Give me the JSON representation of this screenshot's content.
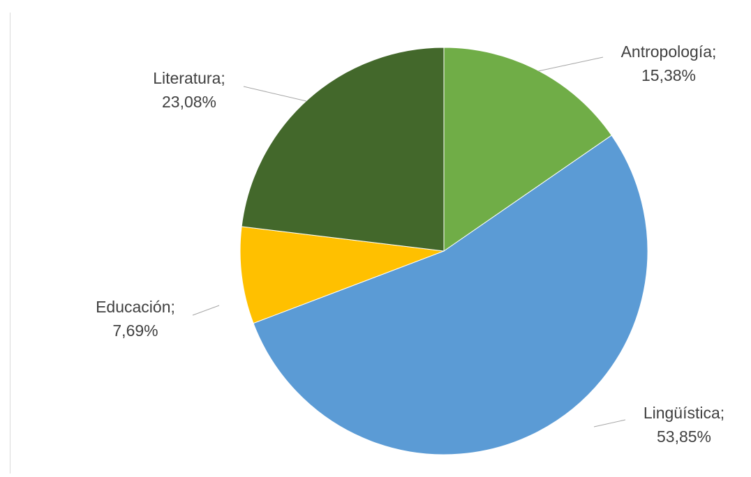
{
  "chart_data": {
    "type": "pie",
    "title": "",
    "slices": [
      {
        "label": "Antropología;",
        "value_label": "15,38%",
        "value": 15.38,
        "color": "#70ad47"
      },
      {
        "label": "Lingüística;",
        "value_label": "53,85%",
        "value": 53.85,
        "color": "#5b9bd5"
      },
      {
        "label": "Educación;",
        "value_label": "7,69%",
        "value": 7.69,
        "color": "#ffc000"
      },
      {
        "label": "Literatura;",
        "value_label": "23,08%",
        "value": 23.08,
        "color": "#43682b"
      }
    ],
    "start_angle": "12 o'clock",
    "direction": "clockwise",
    "legend": "none",
    "data_labels": "outside with leader lines"
  }
}
